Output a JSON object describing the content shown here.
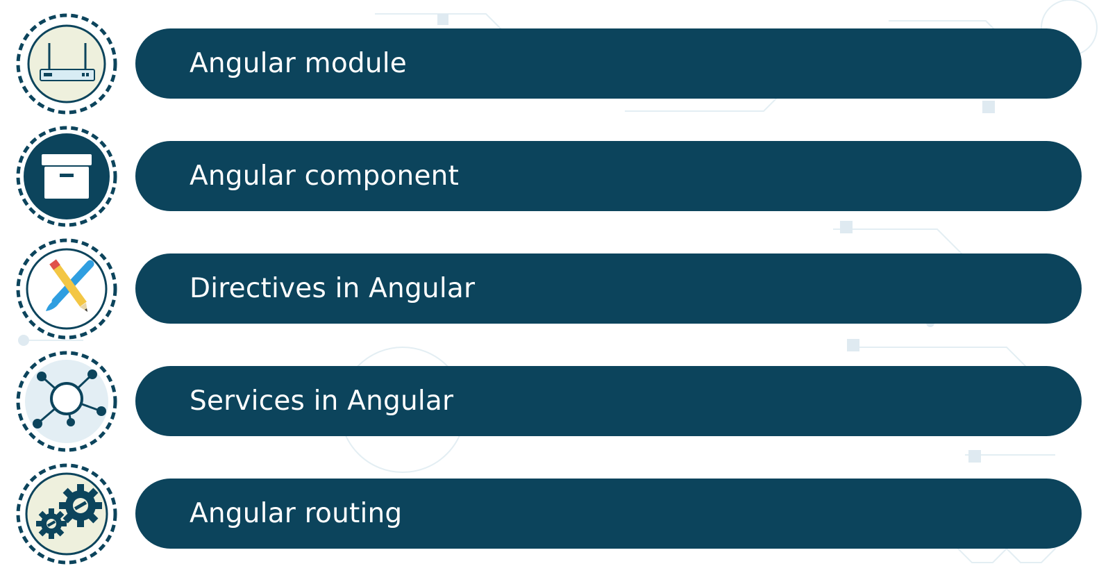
{
  "colors": {
    "pill": "#0c445c",
    "badge_dark": "#0c445c",
    "badge_light": "#eef0dd",
    "badge_white": "#ffffff",
    "badge_blue": "#e3eef4",
    "dash": "#0c445c"
  },
  "items": [
    {
      "label": "Angular module",
      "icon": "router-icon"
    },
    {
      "label": "Angular component",
      "icon": "archive-box-icon"
    },
    {
      "label": "Directives in Angular",
      "icon": "pencil-brush-icon"
    },
    {
      "label": "Services in Angular",
      "icon": "network-hub-icon"
    },
    {
      "label": "Angular routing",
      "icon": "gears-icon"
    }
  ]
}
